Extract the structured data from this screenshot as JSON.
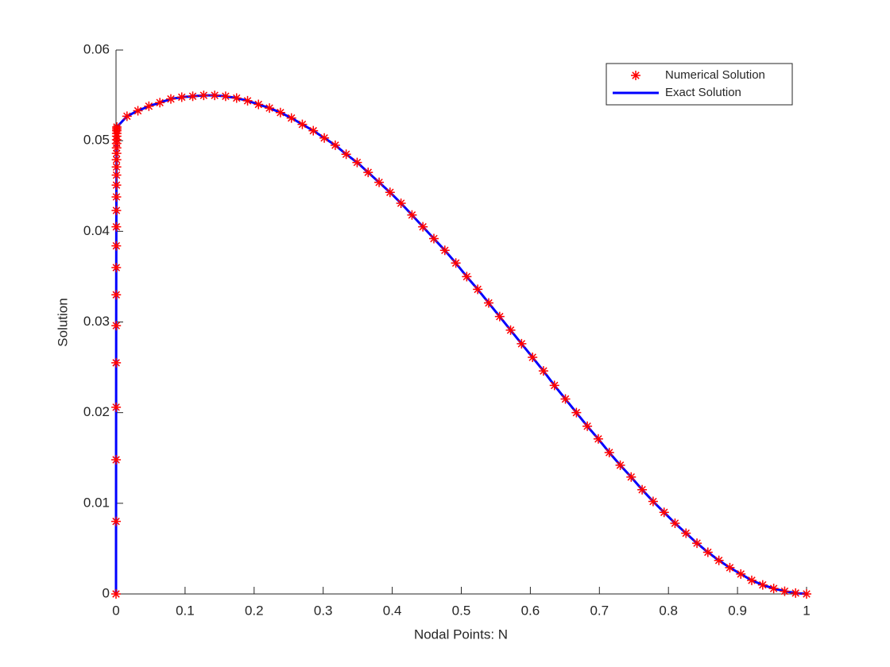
{
  "chart_data": {
    "type": "line",
    "xlabel": "Nodal Points: N",
    "ylabel": "Solution",
    "x": [
      0,
      5e-05,
      0.0001,
      0.00015,
      0.0002,
      0.00025,
      0.0003,
      0.00035,
      0.0004,
      0.00045,
      0.0005,
      0.00055,
      0.0006,
      0.00065,
      0.0007,
      0.00075,
      0.0008,
      0.00085,
      0.0009,
      0.00095,
      0.001,
      0.00105,
      0.0011,
      0.00115,
      0.0012,
      0.0159,
      0.0317,
      0.0476,
      0.0635,
      0.0794,
      0.0952,
      0.1111,
      0.127,
      0.1429,
      0.1587,
      0.1746,
      0.1905,
      0.2063,
      0.2222,
      0.2381,
      0.254,
      0.2698,
      0.2857,
      0.3016,
      0.3175,
      0.3333,
      0.3492,
      0.3651,
      0.381,
      0.3968,
      0.4127,
      0.4286,
      0.4444,
      0.4603,
      0.4762,
      0.4921,
      0.5079,
      0.5238,
      0.5397,
      0.5556,
      0.5714,
      0.5873,
      0.6032,
      0.619,
      0.6349,
      0.6508,
      0.6667,
      0.6825,
      0.6984,
      0.7143,
      0.7302,
      0.746,
      0.7619,
      0.7778,
      0.7937,
      0.8095,
      0.8254,
      0.8413,
      0.8571,
      0.873,
      0.8889,
      0.9048,
      0.9206,
      0.9365,
      0.9524,
      0.9683,
      0.9841,
      1
    ],
    "series": [
      {
        "name": "Numerical Solution",
        "color": "#ff0000",
        "style": "marker",
        "values": [
          0,
          0.008,
          0.0148,
          0.0206,
          0.0255,
          0.0296,
          0.033,
          0.036,
          0.0384,
          0.0405,
          0.0423,
          0.0438,
          0.0451,
          0.0462,
          0.0471,
          0.0479,
          0.0486,
          0.0492,
          0.0497,
          0.0501,
          0.0505,
          0.0508,
          0.0511,
          0.0513,
          0.0515,
          0.0527,
          0.0533,
          0.0538,
          0.0542,
          0.0546,
          0.0548,
          0.0549,
          0.055,
          0.055,
          0.0549,
          0.0547,
          0.0544,
          0.054,
          0.0536,
          0.0531,
          0.0525,
          0.0518,
          0.0511,
          0.0503,
          0.0495,
          0.0485,
          0.0476,
          0.0465,
          0.0454,
          0.0443,
          0.0431,
          0.0418,
          0.0405,
          0.0392,
          0.0379,
          0.0365,
          0.035,
          0.0336,
          0.0321,
          0.0306,
          0.0291,
          0.0276,
          0.0261,
          0.0246,
          0.023,
          0.0215,
          0.02,
          0.0185,
          0.0171,
          0.0156,
          0.0142,
          0.0129,
          0.0115,
          0.0102,
          0.009,
          0.0078,
          0.0067,
          0.0056,
          0.0046,
          0.0037,
          0.0029,
          0.0022,
          0.0015,
          0.001,
          0.0006,
          0.0003,
          0.0001,
          0
        ]
      },
      {
        "name": "Exact Solution",
        "color": "#0000ff",
        "style": "line",
        "values": [
          0,
          0.008,
          0.0148,
          0.0206,
          0.0255,
          0.0296,
          0.033,
          0.036,
          0.0384,
          0.0405,
          0.0423,
          0.0438,
          0.0451,
          0.0462,
          0.0471,
          0.0479,
          0.0486,
          0.0492,
          0.0497,
          0.0501,
          0.0505,
          0.0508,
          0.0511,
          0.0513,
          0.0515,
          0.0527,
          0.0533,
          0.0538,
          0.0542,
          0.0546,
          0.0548,
          0.0549,
          0.055,
          0.055,
          0.0549,
          0.0547,
          0.0544,
          0.054,
          0.0536,
          0.0531,
          0.0525,
          0.0518,
          0.0511,
          0.0503,
          0.0495,
          0.0485,
          0.0476,
          0.0465,
          0.0454,
          0.0443,
          0.0431,
          0.0418,
          0.0405,
          0.0392,
          0.0379,
          0.0365,
          0.035,
          0.0336,
          0.0321,
          0.0306,
          0.0291,
          0.0276,
          0.0261,
          0.0246,
          0.023,
          0.0215,
          0.02,
          0.0185,
          0.0171,
          0.0156,
          0.0142,
          0.0129,
          0.0115,
          0.0102,
          0.009,
          0.0078,
          0.0067,
          0.0056,
          0.0046,
          0.0037,
          0.0029,
          0.0022,
          0.0015,
          0.001,
          0.0006,
          0.0003,
          0.0001,
          0
        ]
      }
    ],
    "xlim": [
      0,
      1
    ],
    "xticks": [
      0,
      0.1,
      0.2,
      0.3,
      0.4,
      0.5,
      0.6,
      0.7,
      0.8,
      0.9,
      1
    ],
    "ylim": [
      0,
      0.06
    ],
    "yticks": [
      0,
      0.01,
      0.02,
      0.03,
      0.04,
      0.05,
      0.06
    ],
    "grid": false,
    "legend": "northeast"
  }
}
